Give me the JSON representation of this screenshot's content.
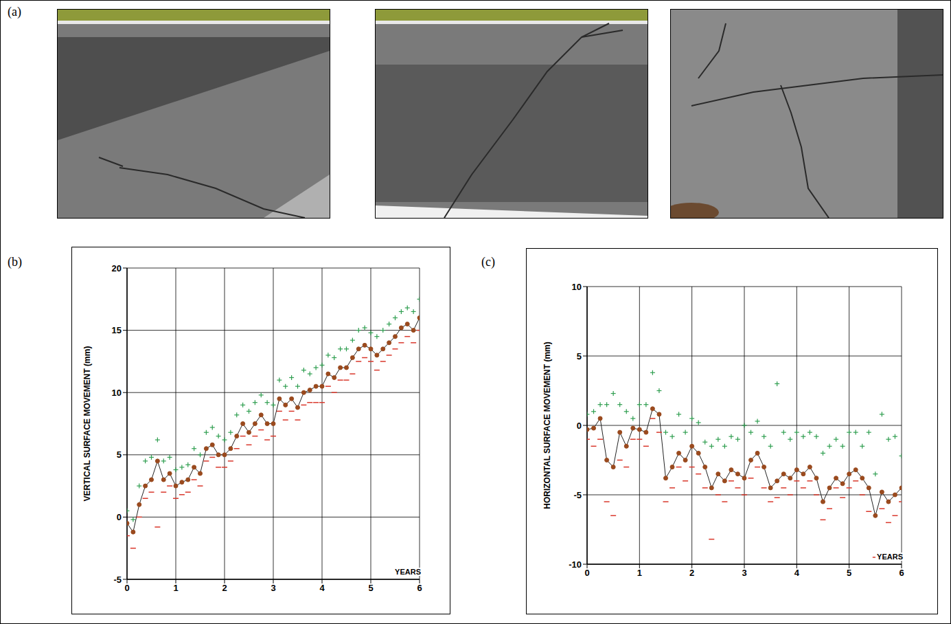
{
  "photo_panel": {
    "label": "(a)"
  },
  "chart_data": [
    {
      "panel": "(b)",
      "type": "line",
      "y_label": "VERTICAL SURFACE MOVEMENT (mm)",
      "x_label": "YEARS",
      "xlim": [
        0,
        6
      ],
      "xticks": [
        0,
        1,
        2,
        3,
        4,
        5,
        6
      ],
      "ylim": [
        -5,
        20
      ],
      "yticks": [
        -5,
        0,
        5,
        10,
        15,
        20
      ],
      "grid": true,
      "x": [
        0,
        0.125,
        0.25,
        0.375,
        0.5,
        0.625,
        0.75,
        0.875,
        1,
        1.125,
        1.25,
        1.375,
        1.5,
        1.625,
        1.75,
        1.875,
        2,
        2.125,
        2.25,
        2.375,
        2.5,
        2.625,
        2.75,
        2.875,
        3,
        3.125,
        3.25,
        3.375,
        3.5,
        3.625,
        3.75,
        3.875,
        4,
        4.125,
        4.25,
        4.375,
        4.5,
        4.625,
        4.75,
        4.875,
        5,
        5.125,
        5.25,
        5.375,
        5.5,
        5.625,
        5.75,
        5.875,
        6
      ],
      "series": [
        {
          "type": "scatter",
          "marker": "plus",
          "color": "#2e9e4f",
          "values": [
            0.5,
            -0.2,
            2.5,
            4.5,
            4.8,
            6.2,
            4.5,
            4.8,
            3.8,
            4,
            4.2,
            5.5,
            5,
            6.8,
            7.2,
            6.5,
            6.2,
            6.8,
            8.2,
            9,
            8.5,
            9.2,
            9.8,
            9.2,
            9,
            11,
            10.5,
            11.2,
            10.5,
            11.8,
            11.5,
            12,
            12.2,
            13,
            12.8,
            13.5,
            13.5,
            14.2,
            15,
            15.2,
            14.8,
            14.5,
            15,
            15.5,
            16,
            16.5,
            16.8,
            16.5,
            17.5
          ]
        },
        {
          "type": "scatter",
          "marker": "dash",
          "color": "#d9372b",
          "values": [
            -1.5,
            -2.5,
            0,
            1.5,
            2,
            -0.8,
            2,
            2.5,
            1.5,
            1.8,
            2,
            3,
            2.5,
            4.5,
            4.8,
            4,
            4,
            4.5,
            5.5,
            6.5,
            5.8,
            6.5,
            7,
            6.2,
            6.5,
            8.5,
            7.8,
            8.5,
            7.8,
            9,
            9.2,
            9.2,
            9.2,
            10.5,
            10,
            11,
            11,
            11.5,
            12.5,
            12.8,
            12.5,
            11.8,
            12.5,
            13,
            13.5,
            14,
            14.5,
            14,
            15
          ]
        },
        {
          "type": "line",
          "marker": "circle",
          "color": "#9a4a1e",
          "values": [
            -0.5,
            -1.2,
            1,
            2.5,
            3,
            4.5,
            3,
            3.5,
            2.5,
            2.8,
            3,
            4,
            3.5,
            5.5,
            5.8,
            5,
            5,
            5.5,
            6.5,
            7.5,
            6.8,
            7.5,
            8.2,
            7.5,
            7.5,
            9.5,
            9,
            9.5,
            8.8,
            10,
            10.2,
            10.5,
            10.5,
            11.5,
            11.2,
            12,
            12,
            12.8,
            13.5,
            13.8,
            13.5,
            13,
            13.5,
            14,
            14.5,
            15.2,
            15.5,
            15,
            16
          ]
        }
      ]
    },
    {
      "panel": "(c)",
      "type": "line",
      "y_label": "HORIZONTAL SURFACE MOVEMENT (mm)",
      "x_label": "YEARS",
      "xlim": [
        0,
        6
      ],
      "xticks": [
        0,
        1,
        2,
        3,
        4,
        5,
        6
      ],
      "ylim": [
        -10,
        10
      ],
      "yticks": [
        -10,
        -5,
        0,
        5,
        10
      ],
      "grid": true,
      "x": [
        0,
        0.125,
        0.25,
        0.375,
        0.5,
        0.625,
        0.75,
        0.875,
        1,
        1.125,
        1.25,
        1.375,
        1.5,
        1.625,
        1.75,
        1.875,
        2,
        2.125,
        2.25,
        2.375,
        2.5,
        2.625,
        2.75,
        2.875,
        3,
        3.125,
        3.25,
        3.375,
        3.5,
        3.625,
        3.75,
        3.875,
        4,
        4.125,
        4.25,
        4.375,
        4.5,
        4.625,
        4.75,
        4.875,
        5,
        5.125,
        5.25,
        5.375,
        5.5,
        5.625,
        5.75,
        5.875,
        6
      ],
      "series": [
        {
          "type": "scatter",
          "marker": "plus",
          "color": "#2e9e4f",
          "values": [
            0.8,
            1,
            1.5,
            1.5,
            2.3,
            1.5,
            1,
            0.5,
            1.5,
            1.5,
            3.8,
            2.5,
            -0.5,
            -0.8,
            0.8,
            -0.5,
            0.5,
            0.2,
            -1.2,
            -1.5,
            -1,
            -1.5,
            -0.8,
            -1,
            0,
            -0.5,
            0.3,
            -0.8,
            -1.5,
            3,
            -0.5,
            -1,
            -0.5,
            -0.8,
            -0.5,
            -0.8,
            -2,
            -1.5,
            -1,
            -1.5,
            -0.5,
            -0.5,
            -1.5,
            -0.5,
            -3.5,
            0.8,
            -1,
            -0.8,
            -2.2
          ]
        },
        {
          "type": "scatter",
          "marker": "dash",
          "color": "#d9372b",
          "values": [
            -1,
            -1.5,
            -1,
            -5.5,
            -6.5,
            -2.5,
            -3,
            -1,
            -1,
            -1.5,
            0.5,
            -0.5,
            -5.5,
            -4.5,
            -3,
            -4,
            -3,
            -3.5,
            -4.5,
            -8.2,
            -5,
            -5.5,
            -4,
            -4.5,
            -5,
            -3.8,
            -3,
            -4.5,
            -5.5,
            -5.2,
            -4.5,
            -5,
            -4,
            -4.5,
            -4,
            -5,
            -6.8,
            -6,
            -4.5,
            -5.2,
            -4.5,
            -4,
            -5,
            -6.2,
            -9.5,
            -6,
            -7,
            -6.5,
            -5.5
          ]
        },
        {
          "type": "line",
          "marker": "circle",
          "color": "#9a4a1e",
          "values": [
            -0.3,
            -0.2,
            0.5,
            -2.5,
            -3,
            -0.5,
            -1.5,
            -0.2,
            -0.3,
            -0.5,
            1.2,
            0.8,
            -3.8,
            -3,
            -2,
            -2.5,
            -1.5,
            -2,
            -3,
            -4.5,
            -3.5,
            -4,
            -3.2,
            -3.5,
            -3.8,
            -2.5,
            -2,
            -3,
            -4.5,
            -4,
            -3.5,
            -3.8,
            -3.2,
            -3.5,
            -3,
            -3.8,
            -5.5,
            -4.5,
            -3.8,
            -4.2,
            -3.5,
            -3.2,
            -3.8,
            -4.5,
            -6.5,
            -4.8,
            -5.5,
            -5,
            -4.5
          ]
        }
      ]
    }
  ]
}
